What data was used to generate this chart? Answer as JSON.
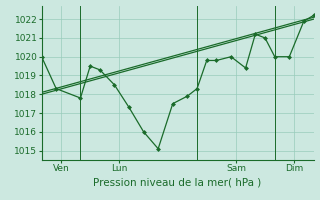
{
  "background_color": "#cce8e0",
  "grid_color": "#99ccbb",
  "line_color": "#1a6b2a",
  "ylim": [
    1014.5,
    1022.7
  ],
  "yticks": [
    1015,
    1016,
    1017,
    1018,
    1019,
    1020,
    1021,
    1022
  ],
  "xlim": [
    0,
    28
  ],
  "xlabel": "Pression niveau de la mer( hPa )",
  "line1_x": [
    0,
    1.5,
    4,
    5,
    6,
    7.5,
    9,
    10.5,
    12,
    13.5,
    15,
    16,
    17,
    18,
    19.5,
    21,
    22,
    23,
    24,
    25.5,
    27,
    28
  ],
  "line1_y": [
    1020.0,
    1018.3,
    1017.8,
    1019.5,
    1019.3,
    1018.5,
    1017.3,
    1016.0,
    1015.1,
    1017.5,
    1017.9,
    1018.3,
    1019.8,
    1019.8,
    1020.0,
    1019.4,
    1021.2,
    1021.0,
    1020.0,
    1020.0,
    1021.9,
    1022.2
  ],
  "line2_x": [
    0,
    28
  ],
  "line2_y": [
    1018.0,
    1022.0
  ],
  "line3_x": [
    0,
    28
  ],
  "line3_y": [
    1018.1,
    1022.1
  ],
  "vlines": [
    4,
    16,
    24
  ],
  "x_tick_pos": [
    2,
    8,
    20,
    26
  ],
  "x_tick_labels": [
    "Ven",
    "Lun",
    "Sam",
    "Dim"
  ],
  "tick_color": "#1a6b2a",
  "tick_fontsize": 6.5,
  "label_fontsize": 7.5
}
